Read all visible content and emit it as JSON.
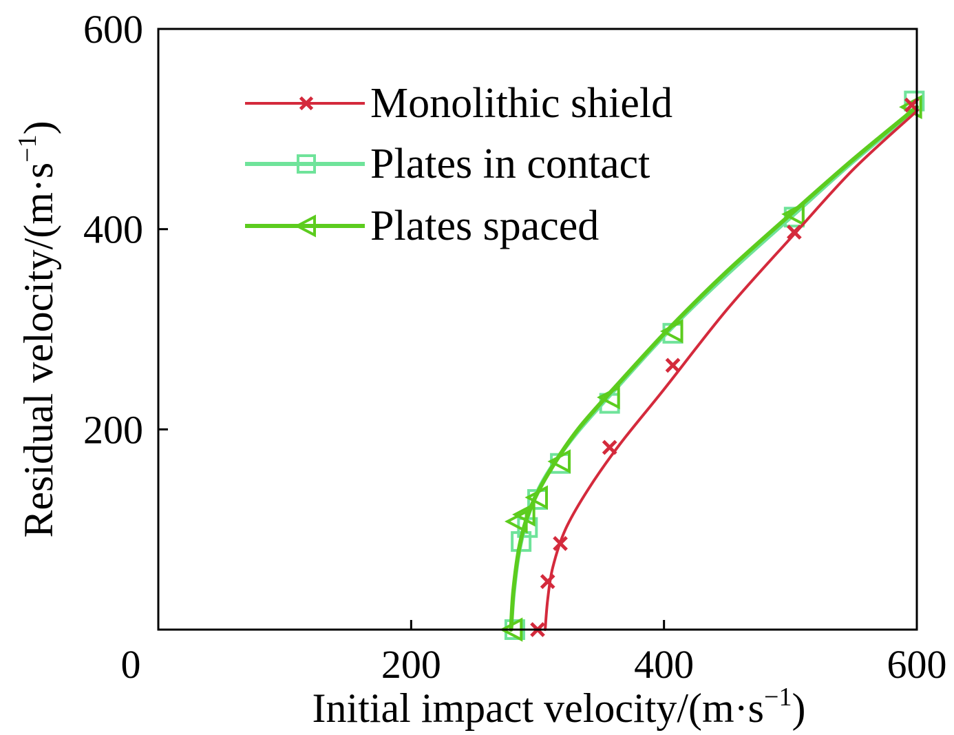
{
  "chart_data": {
    "type": "line",
    "xlabel": "Initial impact velocity/(m·s",
    "xlabel_exp": "−1",
    "xlabel_close": ")",
    "ylabel": "Residual velocity/(m·s",
    "ylabel_exp": "−1",
    "ylabel_close": ")",
    "xlim": [
      0,
      600
    ],
    "ylim": [
      0,
      600
    ],
    "xticks": [
      "0",
      "200",
      "400",
      "600"
    ],
    "yticks": [
      "200",
      "400",
      "600"
    ],
    "grid": false,
    "legend_position": "top-left",
    "series": [
      {
        "name": "Monolithic shield",
        "color": "#d42a3c",
        "marker": "x-marker",
        "points": [
          [
            300,
            0
          ],
          [
            308,
            48
          ],
          [
            318,
            86
          ],
          [
            357,
            182
          ],
          [
            407,
            264
          ],
          [
            503,
            397
          ],
          [
            596,
            524
          ]
        ],
        "curve": [
          [
            306,
            0
          ],
          [
            308,
            30
          ],
          [
            312,
            62
          ],
          [
            322,
            100
          ],
          [
            340,
            140
          ],
          [
            365,
            185
          ],
          [
            400,
            240
          ],
          [
            450,
            320
          ],
          [
            503,
            395
          ],
          [
            550,
            460
          ],
          [
            600,
            518
          ]
        ]
      },
      {
        "name": "Plates in contact",
        "color": "#6fe39a",
        "marker": "square-marker",
        "points": [
          [
            282,
            0
          ],
          [
            287,
            88
          ],
          [
            292,
            102
          ],
          [
            300,
            130
          ],
          [
            318,
            166
          ],
          [
            357,
            226
          ],
          [
            407,
            296
          ],
          [
            503,
            412
          ],
          [
            598,
            528
          ]
        ],
        "curve": [
          [
            279,
            0
          ],
          [
            281,
            35
          ],
          [
            285,
            75
          ],
          [
            292,
            112
          ],
          [
            305,
            150
          ],
          [
            330,
            195
          ],
          [
            365,
            245
          ],
          [
            405,
            300
          ],
          [
            450,
            355
          ],
          [
            503,
            415
          ],
          [
            550,
            468
          ],
          [
            600,
            520
          ]
        ]
      },
      {
        "name": "Plates spaced",
        "color": "#5ccc1e",
        "marker": "left-triangle-marker",
        "points": [
          [
            280,
            0
          ],
          [
            284,
            108
          ],
          [
            290,
            115
          ],
          [
            300,
            132
          ],
          [
            318,
            168
          ],
          [
            357,
            232
          ],
          [
            407,
            298
          ],
          [
            503,
            415
          ],
          [
            596,
            522
          ]
        ],
        "curve": [
          [
            279,
            0
          ],
          [
            281,
            40
          ],
          [
            286,
            85
          ],
          [
            294,
            120
          ],
          [
            308,
            155
          ],
          [
            332,
            200
          ],
          [
            367,
            250
          ],
          [
            405,
            302
          ],
          [
            450,
            358
          ],
          [
            503,
            418
          ],
          [
            550,
            470
          ],
          [
            600,
            522
          ]
        ]
      }
    ]
  }
}
